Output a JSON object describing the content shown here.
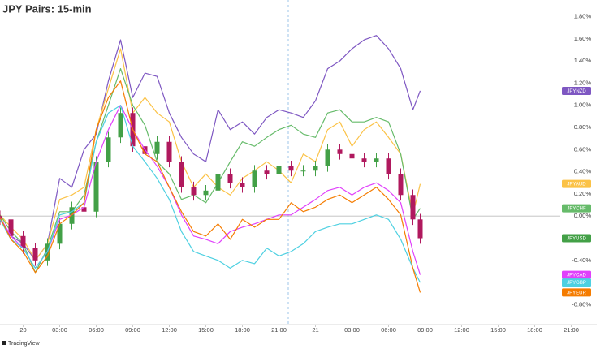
{
  "chart_data": {
    "type": "line",
    "title": "JPY Pairs: 15-min",
    "source": "TradingView",
    "legend": "right-end-tags",
    "x": [
      -1.9,
      -1,
      0,
      1,
      2,
      3,
      4,
      5,
      6,
      7,
      8,
      9,
      10,
      11,
      12,
      13,
      14,
      15,
      16,
      17,
      18,
      19,
      20,
      21,
      22,
      23,
      24,
      25,
      26,
      27,
      28,
      29,
      30,
      31,
      32,
      32.6
    ],
    "xlim": [
      -1.9,
      47.1
    ],
    "xticks": [
      {
        "value": 0,
        "label": "20"
      },
      {
        "value": 3,
        "label": "03:00"
      },
      {
        "value": 6,
        "label": "06:00"
      },
      {
        "value": 9,
        "label": "09:00"
      },
      {
        "value": 12,
        "label": "12:00"
      },
      {
        "value": 15,
        "label": "15:00"
      },
      {
        "value": 18,
        "label": "18:00"
      },
      {
        "value": 21,
        "label": "21:00"
      },
      {
        "value": 24,
        "label": "21"
      },
      {
        "value": 27,
        "label": "03:00"
      },
      {
        "value": 30,
        "label": "06:00"
      },
      {
        "value": 33,
        "label": "09:00"
      },
      {
        "value": 36,
        "label": "12:00"
      },
      {
        "value": 39,
        "label": "15:00"
      },
      {
        "value": 42,
        "label": "18:00"
      },
      {
        "value": 45,
        "label": "21:00"
      }
    ],
    "ylim": [
      -0.98,
      1.95
    ],
    "yticks": [
      {
        "value": 1.8,
        "label": "1.80%"
      },
      {
        "value": 1.6,
        "label": "1.60%"
      },
      {
        "value": 1.4,
        "label": "1.40%"
      },
      {
        "value": 1.2,
        "label": "1.20%"
      },
      {
        "value": 1.0,
        "label": "1.00%"
      },
      {
        "value": 0.8,
        "label": "0.80%"
      },
      {
        "value": 0.6,
        "label": "0.60%"
      },
      {
        "value": 0.4,
        "label": "0.40%"
      },
      {
        "value": 0.2,
        "label": "0.20%"
      },
      {
        "value": 0,
        "label": "0.00%"
      },
      {
        "value": -0.2,
        "label": "-0.20%"
      },
      {
        "value": -0.4,
        "label": "-0.40%"
      },
      {
        "value": -0.6,
        "label": "-0.60%"
      },
      {
        "value": -0.8,
        "label": "-0.80%"
      }
    ],
    "zero_line": true,
    "series": [
      {
        "name": "JPYNZD",
        "color": "#7e57c2",
        "values": [
          -0.03,
          -0.18,
          -0.25,
          -0.4,
          -0.25,
          0.34,
          0.26,
          0.6,
          0.74,
          1.22,
          1.59,
          1.07,
          1.29,
          1.26,
          0.93,
          0.71,
          0.56,
          0.49,
          0.96,
          0.78,
          0.85,
          0.74,
          0.89,
          0.96,
          0.93,
          0.89,
          1.04,
          1.33,
          1.4,
          1.51,
          1.59,
          1.63,
          1.51,
          1.33,
          0.96,
          1.13
        ]
      },
      {
        "name": "JPYAUD",
        "color": "#fbc246",
        "values": [
          0.01,
          -0.1,
          -0.21,
          -0.4,
          -0.25,
          0.15,
          0.19,
          0.26,
          0.78,
          1.15,
          1.51,
          0.93,
          1.07,
          0.93,
          0.85,
          0.49,
          0.26,
          0.38,
          0.26,
          0.19,
          0.34,
          0.41,
          0.49,
          0.41,
          0.3,
          0.56,
          0.49,
          0.78,
          0.85,
          0.63,
          0.78,
          0.85,
          0.71,
          0.56,
          0.01,
          0.29
        ]
      },
      {
        "name": "JPYCHF",
        "color": "#66bb6a",
        "values": [
          0.01,
          -0.14,
          -0.25,
          -0.51,
          -0.29,
          0.04,
          0.04,
          0.19,
          0.67,
          1.0,
          1.33,
          1.0,
          0.82,
          0.49,
          0.38,
          0.15,
          0.19,
          0.12,
          0.3,
          0.49,
          0.67,
          0.63,
          0.71,
          0.78,
          0.82,
          0.74,
          0.71,
          0.93,
          0.96,
          0.85,
          0.85,
          0.89,
          0.85,
          0.56,
          -0.03,
          0.07
        ]
      },
      {
        "name": "JPYUSD",
        "type": "candlestick",
        "up_color": "#43a047",
        "down_color": "#b0195e",
        "open": [
          0.0,
          -0.03,
          -0.18,
          -0.29,
          -0.4,
          -0.25,
          -0.07,
          0.08,
          0.04,
          0.49,
          0.71,
          0.93,
          0.63,
          0.56,
          0.67,
          0.49,
          0.26,
          0.19,
          0.23,
          0.38,
          0.3,
          0.26,
          0.41,
          0.38,
          0.45,
          0.41,
          0.41,
          0.45,
          0.6,
          0.56,
          0.52,
          0.49,
          0.52,
          0.38,
          0.19,
          -0.03
        ],
        "high": [
          0.05,
          0.02,
          -0.13,
          -0.24,
          -0.2,
          -0.02,
          0.13,
          0.13,
          0.54,
          0.76,
          0.98,
          0.98,
          0.68,
          0.72,
          0.72,
          0.54,
          0.31,
          0.28,
          0.43,
          0.43,
          0.35,
          0.46,
          0.46,
          0.5,
          0.5,
          0.46,
          0.5,
          0.65,
          0.65,
          0.61,
          0.57,
          0.57,
          0.57,
          0.43,
          0.24,
          0.02
        ],
        "low": [
          -0.08,
          -0.23,
          -0.34,
          -0.45,
          -0.45,
          -0.3,
          -0.12,
          -0.01,
          -0.01,
          0.44,
          0.66,
          0.58,
          0.51,
          0.51,
          0.44,
          0.21,
          0.14,
          0.14,
          0.18,
          0.25,
          0.21,
          0.21,
          0.33,
          0.33,
          0.36,
          0.36,
          0.36,
          0.4,
          0.51,
          0.47,
          0.44,
          0.44,
          0.33,
          0.14,
          -0.08,
          -0.25
        ],
        "close": [
          -0.03,
          -0.18,
          -0.29,
          -0.4,
          -0.25,
          -0.07,
          0.08,
          0.04,
          0.49,
          0.71,
          0.93,
          0.63,
          0.56,
          0.67,
          0.49,
          0.26,
          0.19,
          0.23,
          0.38,
          0.3,
          0.26,
          0.41,
          0.38,
          0.45,
          0.41,
          0.41,
          0.45,
          0.6,
          0.56,
          0.52,
          0.49,
          0.52,
          0.38,
          0.19,
          -0.03,
          -0.2
        ],
        "color": "#43a047"
      },
      {
        "name": "JPYCAD",
        "color": "#e040fb",
        "values": [
          -0.01,
          -0.18,
          -0.29,
          -0.47,
          -0.32,
          -0.03,
          0.01,
          0.08,
          0.49,
          0.78,
          1.0,
          0.78,
          0.6,
          0.45,
          0.26,
          0.01,
          -0.18,
          -0.21,
          -0.25,
          -0.14,
          -0.1,
          -0.07,
          -0.03,
          0.01,
          0.01,
          0.08,
          0.15,
          0.23,
          0.26,
          0.19,
          0.26,
          0.3,
          0.23,
          0.12,
          -0.32,
          -0.53
        ]
      },
      {
        "name": "JPYGBP",
        "color": "#4dd0e1",
        "values": [
          -0.03,
          -0.21,
          -0.29,
          -0.47,
          -0.32,
          0.01,
          0.04,
          0.12,
          0.67,
          0.93,
          1.0,
          0.63,
          0.49,
          0.34,
          0.15,
          -0.14,
          -0.32,
          -0.36,
          -0.4,
          -0.47,
          -0.4,
          -0.43,
          -0.29,
          -0.36,
          -0.32,
          -0.25,
          -0.14,
          -0.1,
          -0.07,
          -0.07,
          -0.03,
          0.01,
          -0.03,
          -0.21,
          -0.47,
          -0.6
        ]
      },
      {
        "name": "JPYEUR",
        "color": "#f57c00",
        "values": [
          -0.01,
          -0.21,
          -0.32,
          -0.51,
          -0.36,
          -0.07,
          0.01,
          0.12,
          0.78,
          1.07,
          1.22,
          0.78,
          0.56,
          0.49,
          0.26,
          0.04,
          -0.14,
          -0.18,
          -0.07,
          -0.21,
          -0.03,
          -0.1,
          -0.03,
          -0.03,
          0.12,
          0.04,
          0.08,
          0.15,
          0.19,
          0.12,
          0.19,
          0.26,
          0.15,
          0.01,
          -0.47,
          -0.69
        ]
      }
    ]
  }
}
